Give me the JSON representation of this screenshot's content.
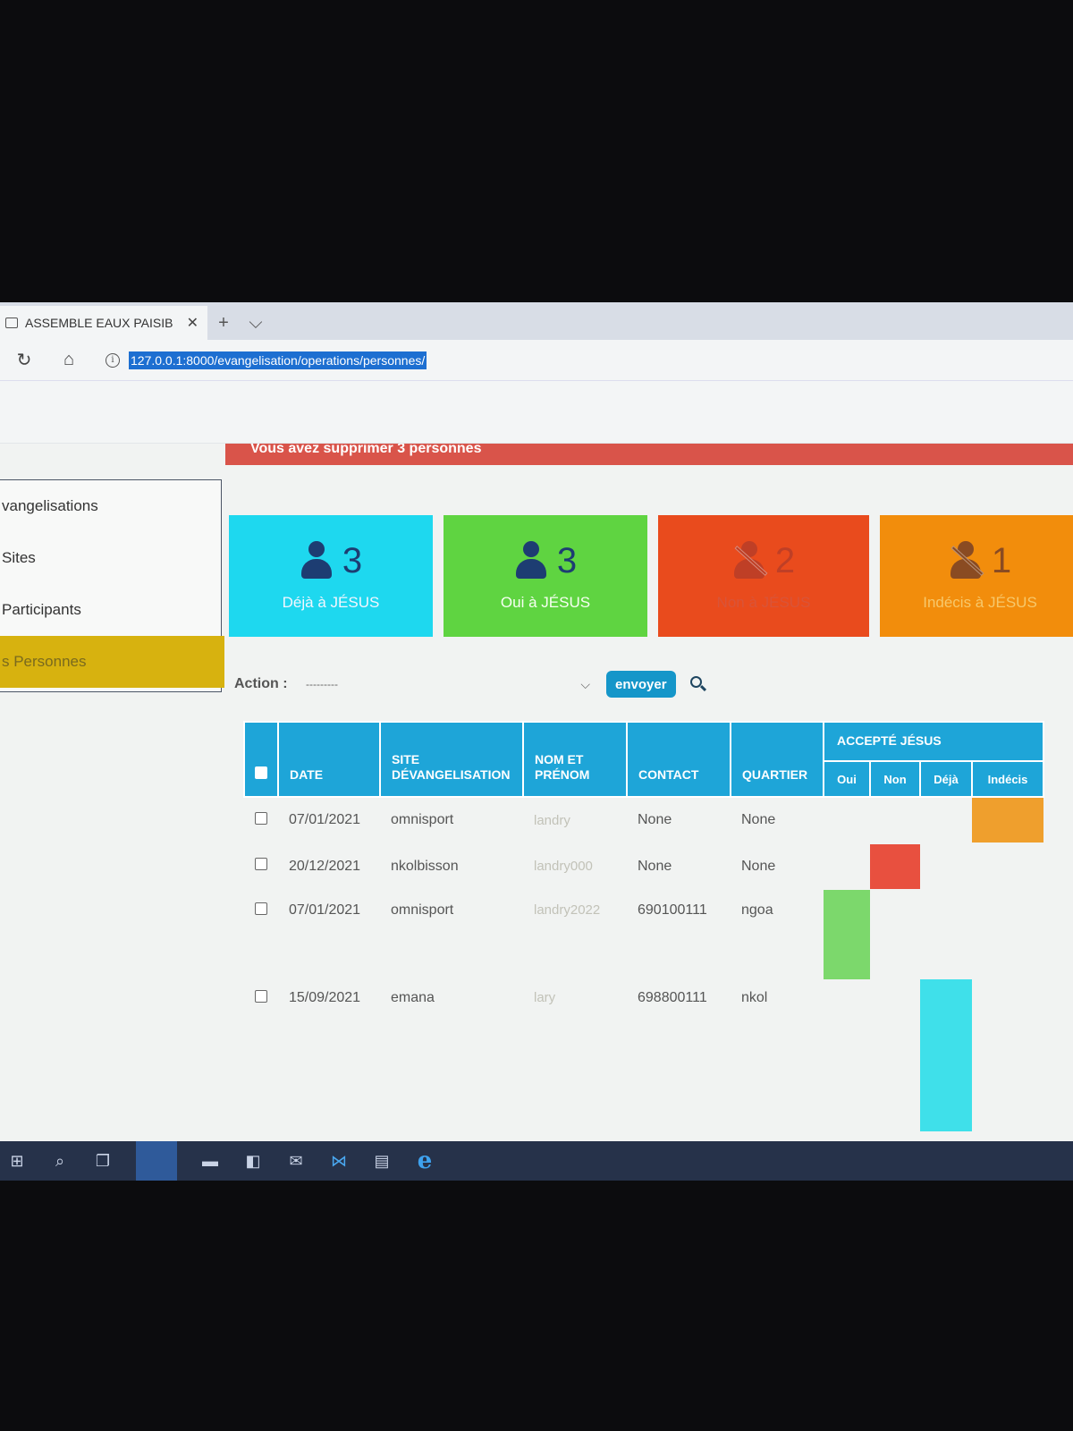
{
  "browser": {
    "tab_title": "ASSEMBLE EAUX PAISIB",
    "close_symbol": "✕",
    "new_tab_symbol": "+",
    "tab_menu_symbol": "⌵",
    "reload_symbol": "↻",
    "home_symbol": "⌂",
    "info_symbol": "i",
    "url": "127.0.0.1:8000/evangelisation/operations/personnes/"
  },
  "alert": {
    "message": "Vous avez supprimer 3 personnes"
  },
  "sidebar": {
    "items": [
      {
        "label": "vangelisations"
      },
      {
        "label": "Sites"
      },
      {
        "label": "Participants"
      },
      {
        "label": "s Personnes",
        "active": true
      }
    ]
  },
  "cards": [
    {
      "count": "3",
      "label": "Déjà à JÉSUS",
      "icon": "person-icon",
      "color": "#1ed8ef"
    },
    {
      "count": "3",
      "label": "Oui à JÉSUS",
      "icon": "person-icon",
      "color": "#5fd441"
    },
    {
      "count": "2",
      "label": "Non à JÉSUS",
      "icon": "person-slash-icon",
      "color": "#e94b1d"
    },
    {
      "count": "1",
      "label": "Indécis à JÉSUS",
      "icon": "person-slash-icon",
      "color": "#f28d0c"
    }
  ],
  "actions": {
    "label": "Action :",
    "selected": "---------",
    "chevron": "⌵",
    "send_label": "envoyer"
  },
  "table": {
    "headers": {
      "date": "DATE",
      "site": "SITE DÉVANGELISATION",
      "name": "NOM ET PRÉNOM",
      "contact": "CONTACT",
      "quartier": "QUARTIER",
      "group": "ACCEPTÉ JÉSUS",
      "oui": "Oui",
      "non": "Non",
      "deja": "Déjà",
      "indecis": "Indécis"
    },
    "rows": [
      {
        "date": "07/01/2021",
        "site": "omnisport",
        "name": "landry",
        "contact": "None",
        "quartier": "None",
        "status": "indecis"
      },
      {
        "date": "20/12/2021",
        "site": "nkolbisson",
        "name": "landry000",
        "contact": "None",
        "quartier": "None",
        "status": "non"
      },
      {
        "date": "07/01/2021",
        "site": "omnisport",
        "name": "landry2022",
        "contact": "690100111",
        "quartier": "ngoa",
        "status": "oui"
      },
      {
        "date": "15/09/2021",
        "site": "emana",
        "name": "lary",
        "contact": "698800111",
        "quartier": "nkol",
        "status": "deja"
      }
    ]
  }
}
